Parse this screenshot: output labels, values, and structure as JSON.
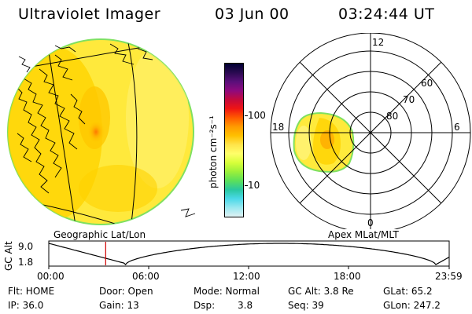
{
  "header": {
    "title": "Ultraviolet Imager",
    "date": "03 Jun 00",
    "time": "03:24:44 UT"
  },
  "colorbar": {
    "unit_label": "photon cm⁻²s⁻¹",
    "tick_100": "100",
    "tick_10": "10",
    "colors": [
      "#000033",
      "#2a0a50",
      "#5a0f7a",
      "#8e0a7e",
      "#c40a3c",
      "#ef1414",
      "#ff5a00",
      "#ff9a00",
      "#ffc000",
      "#ffe44a",
      "#ffff6a",
      "#d8ff3a",
      "#9cf03a",
      "#5ce05a",
      "#2ac8a0",
      "#4ad8e8",
      "#9ae8f0",
      "#e0f2f4"
    ]
  },
  "globe": {
    "label": "Geographic Lat/Lon"
  },
  "polar": {
    "label": "Apex MLat/MLT",
    "mlt_12": "12",
    "mlt_18": "18",
    "mlt_6": "6",
    "mlt_0": "0",
    "lat_60": "60",
    "lat_70": "70",
    "lat_80": "80"
  },
  "altitude_plot": {
    "ylabel": "GC Alt",
    "y_max": "9.0",
    "y_min": "1.8",
    "x_ticks": [
      "00:00",
      "06:00",
      "12:00",
      "18:00",
      "23:59"
    ],
    "current_hour": 3.41
  },
  "info": {
    "row1": {
      "flt": "Flt: HOME",
      "door": "Door: Open",
      "mode": "Mode: Normal",
      "gcalt": "GC Alt: 3.8 Re",
      "glat": "GLat: 65.2"
    },
    "row2": {
      "ip": "IP: 36.0",
      "gain": "Gain: 13",
      "dsp_label": "Dsp:",
      "dsp_value": "3.8",
      "seq": "Seq: 39",
      "glon": "GLon: 247.2"
    }
  }
}
